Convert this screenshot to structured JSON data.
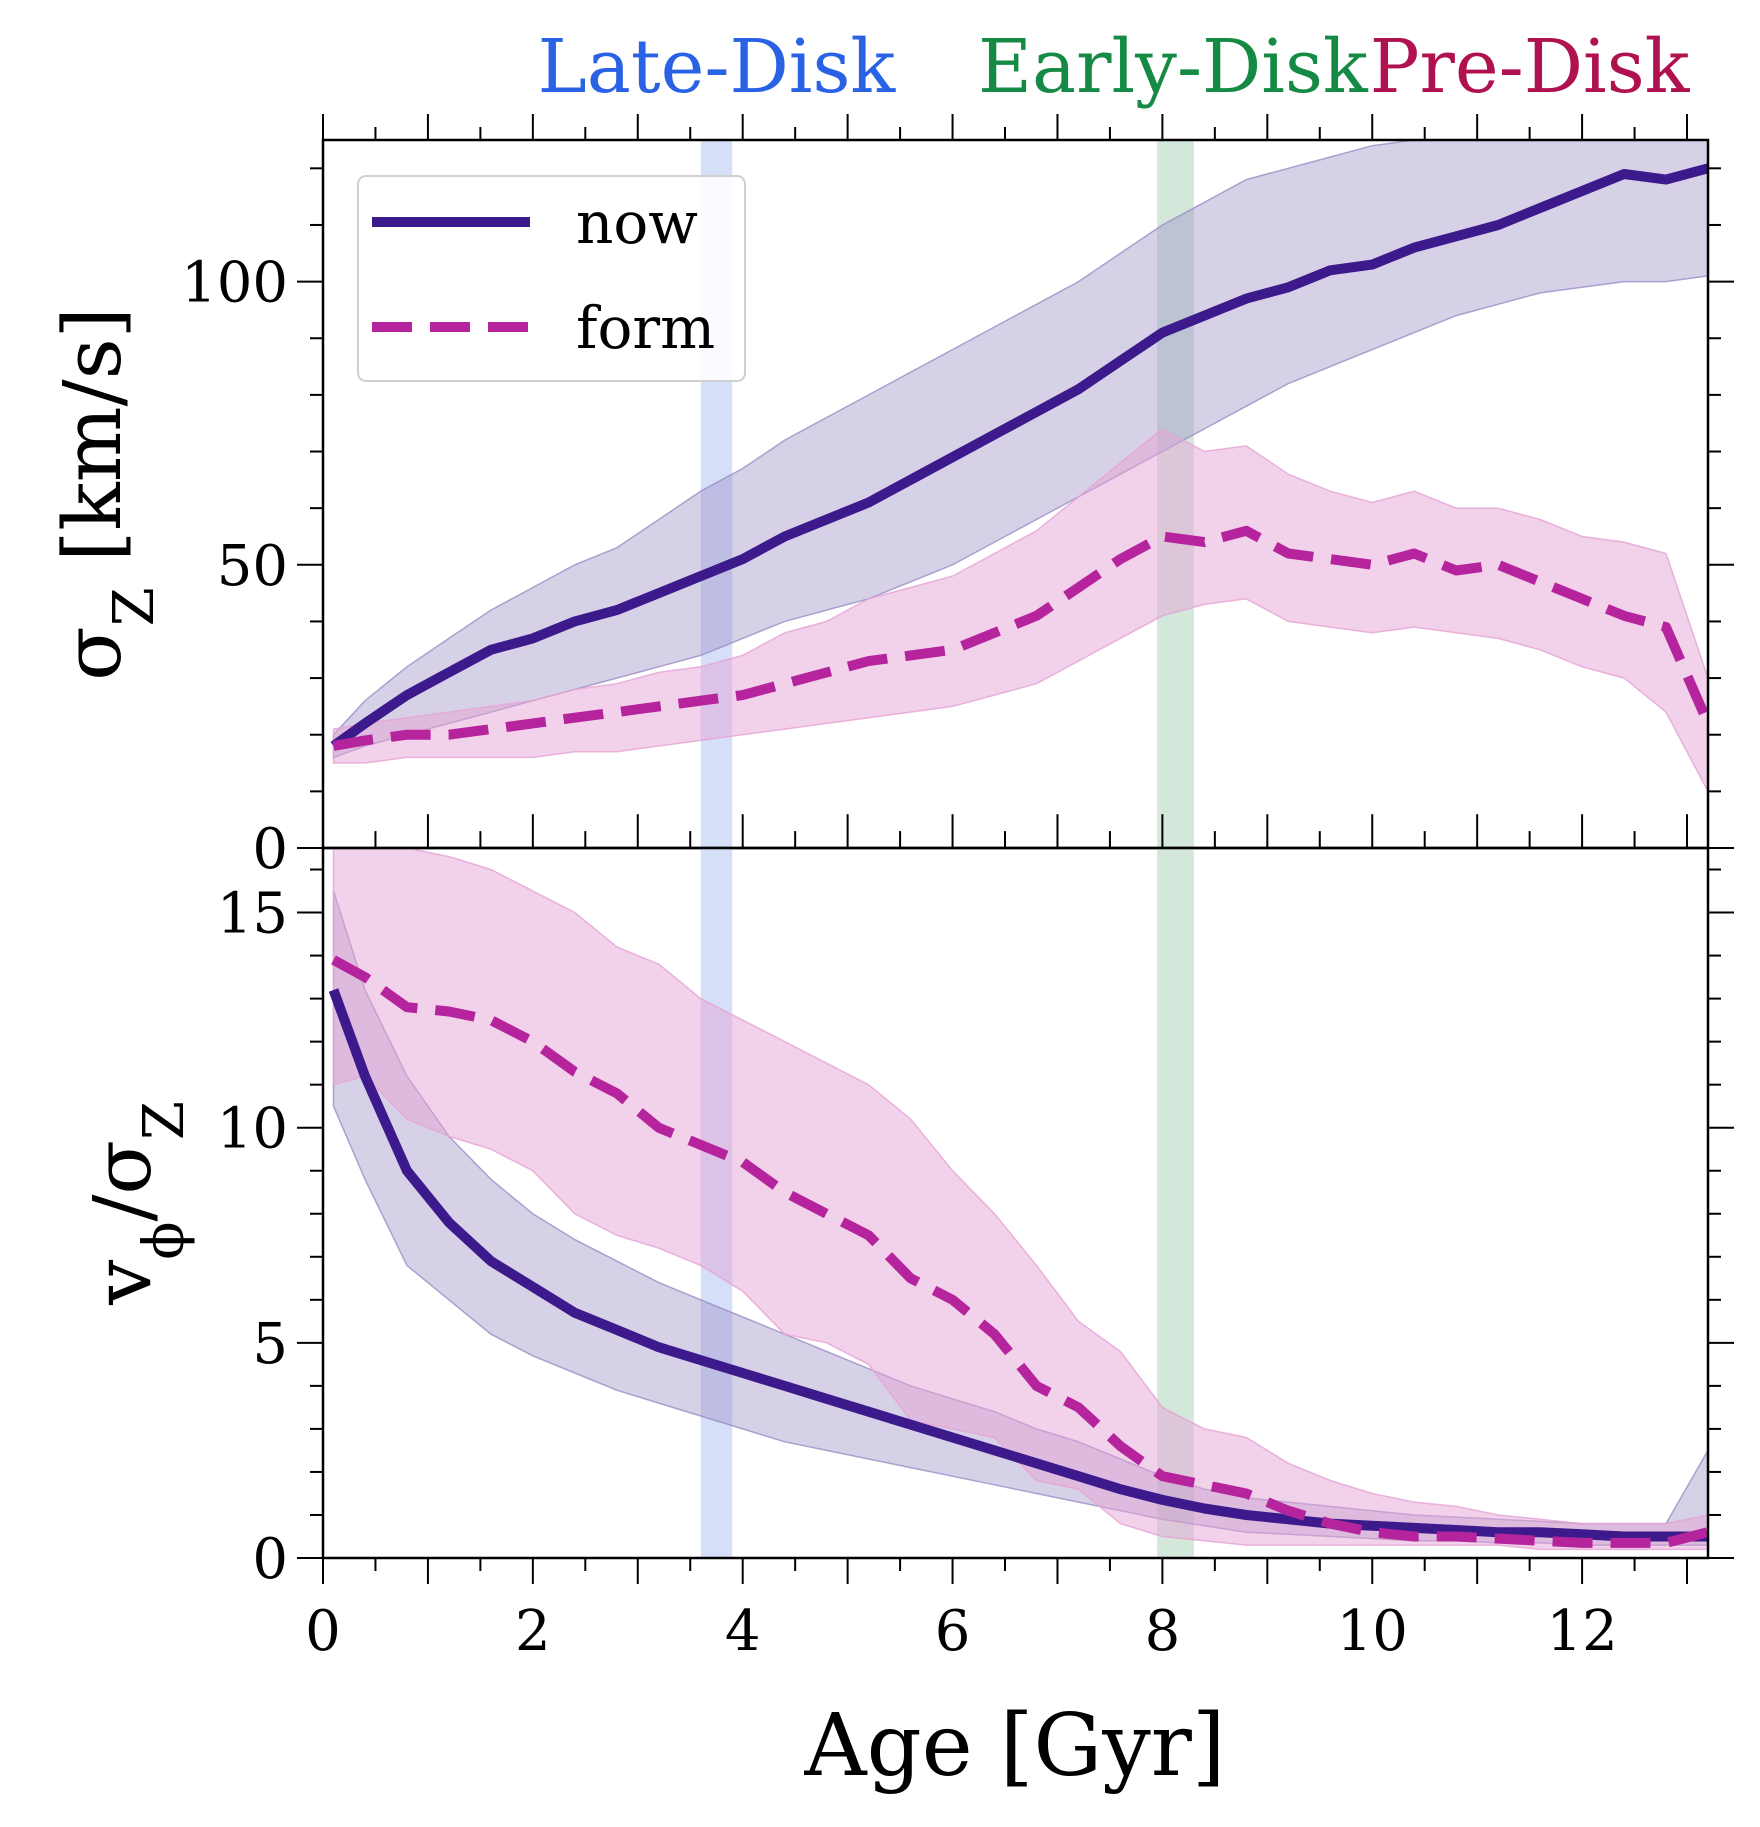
{
  "colors": {
    "now": "#3d1a8c",
    "form": "#b5249c",
    "late_disk": "#2a62e6",
    "early_disk": "#158a45",
    "pre_disk": "#b0124f",
    "now_band": "#9b8dc6",
    "form_band": "#e6a3d6",
    "late_band": "#c7d6f5",
    "early_band": "#c4e0cf"
  },
  "phases": [
    {
      "label": "Late-Disk",
      "color_key": "late_disk",
      "x_center": 3.75,
      "band": [
        3.6,
        3.9
      ]
    },
    {
      "label": "Early-Disk",
      "color_key": "early_disk",
      "x_center": 8.1,
      "band": [
        7.95,
        8.3
      ]
    },
    {
      "label": "Pre-Disk",
      "color_key": "pre_disk",
      "x_center": 11.5,
      "band": null
    }
  ],
  "chart_data": [
    {
      "type": "line",
      "panel": "top",
      "ylabel": "σ_Z [km/s]",
      "xlabel": "",
      "xlim": [
        0,
        13.2
      ],
      "ylim": [
        0,
        125
      ],
      "yticks": [
        0,
        50,
        100
      ],
      "legend": {
        "placement": "top-left",
        "entries": [
          "now",
          "form"
        ]
      },
      "series": [
        {
          "name": "now",
          "style": "solid",
          "x": [
            0.1,
            0.4,
            0.8,
            1.2,
            1.6,
            2.0,
            2.4,
            2.8,
            3.2,
            3.6,
            4.0,
            4.4,
            4.8,
            5.2,
            5.6,
            6.0,
            6.4,
            6.8,
            7.2,
            7.6,
            8.0,
            8.4,
            8.8,
            9.2,
            9.6,
            10.0,
            10.4,
            10.8,
            11.2,
            11.6,
            12.0,
            12.4,
            12.8,
            13.2
          ],
          "y": [
            18,
            22,
            27,
            31,
            35,
            37,
            40,
            42,
            45,
            48,
            51,
            55,
            58,
            61,
            65,
            69,
            73,
            77,
            81,
            86,
            91,
            94,
            97,
            99,
            102,
            103,
            106,
            108,
            110,
            113,
            116,
            119,
            118,
            120
          ],
          "lower": [
            16,
            18,
            20,
            22,
            24,
            26,
            28,
            30,
            32,
            34,
            37,
            40,
            42,
            44,
            47,
            50,
            54,
            58,
            62,
            66,
            70,
            74,
            78,
            82,
            85,
            88,
            91,
            94,
            96,
            98,
            99,
            100,
            100,
            101
          ],
          "upper": [
            20,
            26,
            32,
            37,
            42,
            46,
            50,
            53,
            58,
            63,
            67,
            72,
            76,
            80,
            84,
            88,
            92,
            96,
            100,
            105,
            110,
            114,
            118,
            120,
            122,
            124,
            125,
            125,
            125,
            125,
            125,
            125,
            125,
            125
          ]
        },
        {
          "name": "form",
          "style": "dashed",
          "x": [
            0.1,
            0.4,
            0.8,
            1.2,
            1.6,
            2.0,
            2.4,
            2.8,
            3.2,
            3.6,
            4.0,
            4.4,
            4.8,
            5.2,
            5.6,
            6.0,
            6.4,
            6.8,
            7.2,
            7.6,
            8.0,
            8.4,
            8.8,
            9.2,
            9.6,
            10.0,
            10.4,
            10.8,
            11.2,
            11.6,
            12.0,
            12.4,
            12.8,
            13.2
          ],
          "y": [
            18,
            19,
            20,
            20,
            21,
            22,
            23,
            24,
            25,
            26,
            27,
            29,
            31,
            33,
            34,
            35,
            38,
            41,
            46,
            51,
            55,
            54,
            56,
            52,
            51,
            50,
            52,
            49,
            50,
            47,
            44,
            41,
            39,
            22
          ],
          "lower": [
            15,
            15,
            16,
            16,
            16,
            16,
            17,
            17,
            18,
            19,
            20,
            21,
            22,
            23,
            24,
            25,
            27,
            29,
            33,
            37,
            41,
            43,
            44,
            40,
            39,
            38,
            39,
            38,
            37,
            35,
            32,
            30,
            24,
            10
          ],
          "upper": [
            21,
            22,
            23,
            24,
            25,
            26,
            28,
            29,
            31,
            32,
            34,
            38,
            40,
            44,
            46,
            48,
            52,
            56,
            62,
            68,
            74,
            70,
            71,
            66,
            63,
            61,
            63,
            60,
            60,
            58,
            55,
            54,
            52,
            30
          ]
        }
      ]
    },
    {
      "type": "line",
      "panel": "bottom",
      "ylabel": "v_φ/σ_Z",
      "xlabel": "Age [Gyr]",
      "xlim": [
        0,
        13.2
      ],
      "ylim": [
        0,
        16.5
      ],
      "yticks": [
        0,
        5,
        10,
        15
      ],
      "xticks": [
        0,
        2,
        4,
        6,
        8,
        10,
        12
      ],
      "series": [
        {
          "name": "now",
          "style": "solid",
          "x": [
            0.1,
            0.4,
            0.8,
            1.2,
            1.6,
            2.0,
            2.4,
            2.8,
            3.2,
            3.6,
            4.0,
            4.4,
            4.8,
            5.2,
            5.6,
            6.0,
            6.4,
            6.8,
            7.2,
            7.6,
            8.0,
            8.4,
            8.8,
            9.2,
            9.6,
            10.0,
            10.4,
            10.8,
            11.2,
            11.6,
            12.0,
            12.4,
            12.8,
            13.2
          ],
          "y": [
            13.2,
            11.2,
            9.0,
            7.8,
            6.9,
            6.3,
            5.7,
            5.3,
            4.9,
            4.6,
            4.3,
            4.0,
            3.7,
            3.4,
            3.1,
            2.8,
            2.5,
            2.2,
            1.9,
            1.6,
            1.35,
            1.15,
            1.0,
            0.9,
            0.8,
            0.75,
            0.7,
            0.65,
            0.6,
            0.6,
            0.55,
            0.5,
            0.5,
            0.5
          ],
          "lower": [
            10.5,
            8.8,
            6.8,
            6.0,
            5.2,
            4.7,
            4.3,
            3.9,
            3.6,
            3.3,
            3.0,
            2.7,
            2.5,
            2.3,
            2.1,
            1.9,
            1.7,
            1.5,
            1.3,
            1.1,
            0.9,
            0.75,
            0.6,
            0.55,
            0.5,
            0.45,
            0.4,
            0.4,
            0.35,
            0.35,
            0.3,
            0.3,
            0.3,
            0.3
          ],
          "upper": [
            15.5,
            13.2,
            11.2,
            9.8,
            8.8,
            8.0,
            7.4,
            6.9,
            6.4,
            6.0,
            5.6,
            5.2,
            4.8,
            4.4,
            4.0,
            3.7,
            3.4,
            3.0,
            2.7,
            2.3,
            1.9,
            1.6,
            1.4,
            1.3,
            1.2,
            1.1,
            1.0,
            0.95,
            0.9,
            0.85,
            0.8,
            0.8,
            0.8,
            2.5
          ]
        },
        {
          "name": "form",
          "style": "dashed",
          "x": [
            0.1,
            0.4,
            0.8,
            1.2,
            1.6,
            2.0,
            2.4,
            2.8,
            3.2,
            3.6,
            4.0,
            4.4,
            4.8,
            5.2,
            5.6,
            6.0,
            6.4,
            6.8,
            7.2,
            7.6,
            8.0,
            8.4,
            8.8,
            9.2,
            9.6,
            10.0,
            10.4,
            10.8,
            11.2,
            11.6,
            12.0,
            12.4,
            12.8,
            13.2
          ],
          "y": [
            13.9,
            13.5,
            12.8,
            12.7,
            12.5,
            12.0,
            11.3,
            10.8,
            10.0,
            9.6,
            9.2,
            8.5,
            8.0,
            7.5,
            6.5,
            6.0,
            5.2,
            4.0,
            3.5,
            2.6,
            1.9,
            1.7,
            1.5,
            1.1,
            0.8,
            0.6,
            0.5,
            0.5,
            0.45,
            0.4,
            0.35,
            0.35,
            0.35,
            0.6
          ],
          "lower": [
            11.0,
            11.2,
            10.2,
            9.8,
            9.5,
            9.0,
            8.0,
            7.5,
            7.2,
            6.8,
            6.2,
            5.2,
            5.0,
            4.5,
            3.2,
            3.0,
            2.8,
            1.8,
            1.6,
            0.8,
            0.5,
            0.4,
            0.3,
            0.3,
            0.3,
            0.3,
            0.3,
            0.3,
            0.3,
            0.2,
            0.2,
            0.2,
            0.2,
            0.2
          ],
          "upper": [
            16.5,
            16.5,
            16.5,
            16.3,
            16.0,
            15.5,
            15.0,
            14.2,
            13.8,
            13.0,
            12.5,
            12.0,
            11.5,
            11.0,
            10.2,
            9.0,
            8.0,
            6.8,
            5.5,
            4.8,
            3.5,
            3.0,
            2.8,
            2.2,
            1.8,
            1.5,
            1.3,
            1.2,
            1.0,
            0.9,
            0.8,
            0.8,
            0.8,
            1.0
          ]
        }
      ]
    }
  ]
}
